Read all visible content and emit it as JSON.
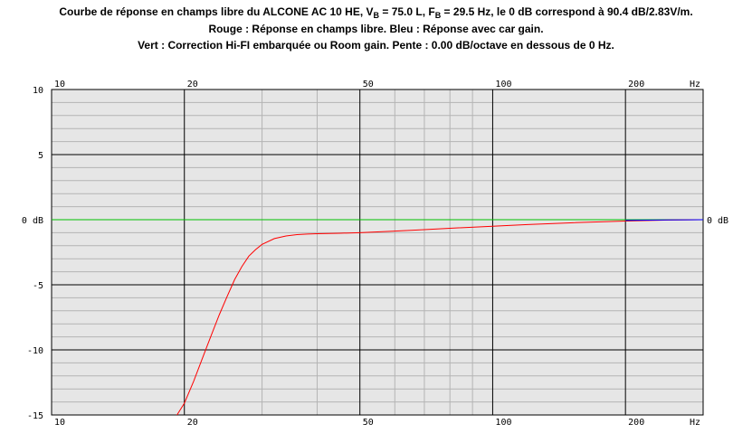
{
  "title": {
    "line1": {
      "prefix": "Courbe de réponse en champs libre du ALCONE AC 10 HE, V",
      "vb_sub": "B",
      "vb_value": " = 75.0 L, F",
      "fb_sub": "B",
      "suffix": " = 29.5 Hz, le 0 dB correspond à 90.4 dB/2.83V/m."
    },
    "line2": "Rouge : Réponse en champs libre. Bleu : Réponse avec car gain.",
    "line3": "Vert : Correction Hi-FI embarquée ou Room gain. Pente : 0.00 dB/octave en dessous de 0 Hz."
  },
  "chart_data": {
    "type": "line",
    "x_scale": "log",
    "xlim": [
      10,
      300
    ],
    "ylim": [
      -15,
      10
    ],
    "x_ticks": [
      10,
      20,
      50,
      100,
      200
    ],
    "x_tick_labels": [
      "10",
      "20",
      "50",
      "100",
      "200"
    ],
    "x_unit_label": "Hz",
    "y_ticks": [
      10,
      5,
      0,
      -5,
      -10,
      -15
    ],
    "y_tick_labels": [
      "10",
      "5",
      "0 dB",
      "-5",
      "-10",
      "-15"
    ],
    "right_label": "0 dB",
    "grid": true,
    "series": [
      {
        "name": "Rouge",
        "color": "#ff0000",
        "x": [
          18,
          19,
          20,
          21,
          22,
          23,
          24,
          25,
          26,
          27,
          28,
          29,
          30,
          32,
          34,
          36,
          38,
          40,
          45,
          50,
          60,
          70,
          80,
          100,
          120,
          150,
          200,
          250,
          300
        ],
        "y": [
          -16.2,
          -15.3,
          -14.1,
          -12.4,
          -10.6,
          -8.9,
          -7.3,
          -5.9,
          -4.6,
          -3.6,
          -2.8,
          -2.3,
          -1.9,
          -1.45,
          -1.25,
          -1.15,
          -1.1,
          -1.08,
          -1.04,
          -1.0,
          -0.88,
          -0.76,
          -0.66,
          -0.5,
          -0.37,
          -0.24,
          -0.1,
          -0.03,
          0.0
        ]
      },
      {
        "name": "Bleu",
        "color": "#0000ff",
        "x": [
          200,
          250,
          300
        ],
        "y": [
          -0.05,
          -0.02,
          0.0
        ]
      },
      {
        "name": "Vert",
        "color": "#00c000",
        "x": [
          10,
          300
        ],
        "y": [
          0,
          0
        ]
      }
    ]
  }
}
